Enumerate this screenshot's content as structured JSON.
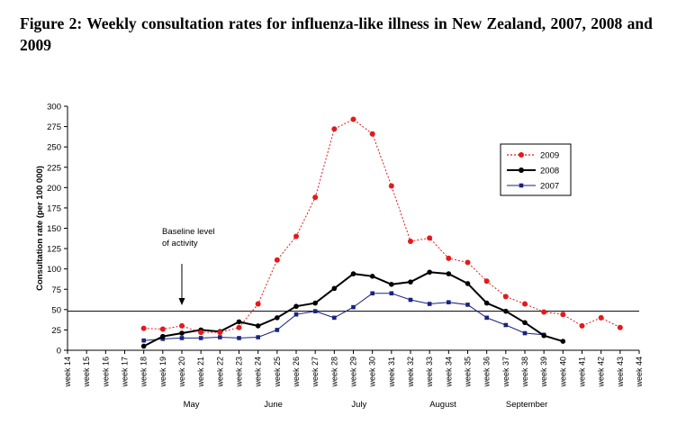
{
  "figure": {
    "title": "Figure 2: Weekly consultation rates for influenza-like illness in New Zealand, 2007, 2008 and 2009"
  },
  "chart_data": {
    "type": "line",
    "title": "Figure 2: Weekly consultation rates for influenza-like illness in New Zealand, 2007, 2008 and 2009",
    "xlabel": "",
    "ylabel": "Consultation rate (per 100 000)",
    "ylim": [
      0,
      300
    ],
    "yticks": [
      0,
      25,
      50,
      75,
      100,
      125,
      150,
      175,
      200,
      225,
      250,
      275,
      300
    ],
    "grid": false,
    "legend_position": "top-right",
    "categories": [
      "week 14",
      "week 15",
      "week 16",
      "week 17",
      "week 18",
      "week 19",
      "week 20",
      "week 21",
      "week 22",
      "week 23",
      "week 24",
      "week 25",
      "week 26",
      "week 27",
      "week 28",
      "week 29",
      "week 30",
      "week 31",
      "week 32",
      "week 33",
      "week 34",
      "week 35",
      "week 36",
      "week 37",
      "week 38",
      "week 39",
      "week 40",
      "week 41",
      "week 42",
      "week 43",
      "week 44"
    ],
    "months": [
      {
        "label": "May",
        "week": 20.5
      },
      {
        "label": "June",
        "week": 24.8
      },
      {
        "label": "July",
        "week": 29.3
      },
      {
        "label": "August",
        "week": 33.7
      },
      {
        "label": "September",
        "week": 38.1
      }
    ],
    "baseline": {
      "value": 48,
      "label_line1": "Baseline level",
      "label_line2": "of activity",
      "arrow_week": 20
    },
    "series": [
      {
        "name": "2009",
        "color": "#e31a1c",
        "style": "dotted",
        "marker": "circle",
        "values": [
          null,
          null,
          null,
          null,
          27,
          26,
          30,
          22,
          22,
          28,
          57,
          111,
          140,
          188,
          272,
          284,
          266,
          202,
          134,
          138,
          113,
          108,
          85,
          66,
          57,
          47,
          44,
          30,
          40,
          28,
          null
        ]
      },
      {
        "name": "2008",
        "color": "#000000",
        "style": "solid",
        "marker": "circle",
        "values": [
          null,
          null,
          null,
          null,
          5,
          17,
          21,
          25,
          23,
          35,
          30,
          40,
          54,
          58,
          76,
          94,
          91,
          81,
          84,
          96,
          94,
          82,
          58,
          48,
          34,
          18,
          11,
          null,
          null,
          null,
          null
        ]
      },
      {
        "name": "2007",
        "color": "#1a237e",
        "style": "solid",
        "marker": "square",
        "values": [
          null,
          null,
          null,
          null,
          12,
          14,
          15,
          15,
          16,
          15,
          16,
          25,
          44,
          48,
          40,
          53,
          70,
          70,
          62,
          57,
          59,
          56,
          40,
          31,
          21,
          19,
          null,
          null,
          null,
          null,
          null
        ]
      }
    ]
  }
}
